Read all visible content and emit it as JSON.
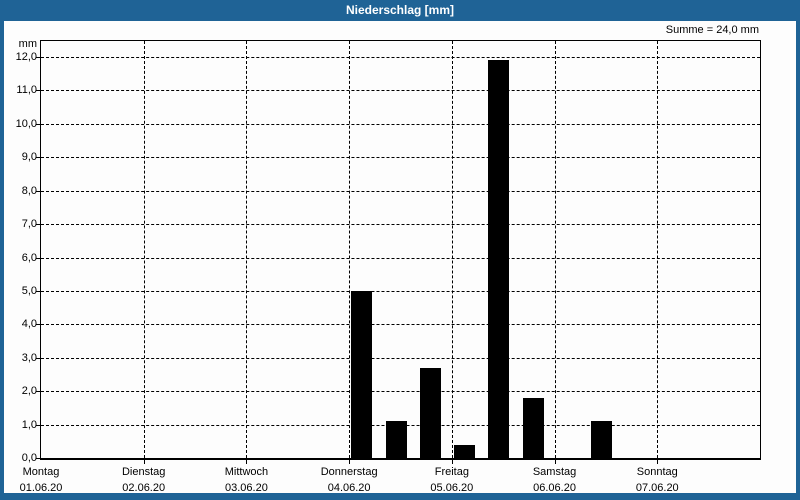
{
  "window": {
    "title": "Niederschlag [mm]",
    "titlebar_color": "#1f6396",
    "border_color": "#1f6396"
  },
  "chart_data": {
    "type": "bar",
    "title": "Niederschlag [mm]",
    "ylabel": "mm",
    "sum_annotation": "Summe = 24,0 mm",
    "sum_value_mm": "24,0",
    "ylim": [
      0,
      12
    ],
    "y_tick_step": 1.0,
    "y_tick_labels": [
      "0,0",
      "1,0",
      "2,0",
      "3,0",
      "4,0",
      "5,0",
      "6,0",
      "7,0",
      "8,0",
      "9,0",
      "10,0",
      "11,0",
      "12,0"
    ],
    "grid": "dashed",
    "legend": "none",
    "bar_color": "#000000",
    "x_axis_days": [
      {
        "name": "Montag",
        "date": "01.06.20"
      },
      {
        "name": "Dienstag",
        "date": "02.06.20"
      },
      {
        "name": "Mittwoch",
        "date": "03.06.20"
      },
      {
        "name": "Donnerstag",
        "date": "04.06.20"
      },
      {
        "name": "Freitag",
        "date": "05.06.20"
      },
      {
        "name": "Samstag",
        "date": "06.06.20"
      },
      {
        "name": "Sonntag",
        "date": "07.06.20"
      }
    ],
    "bars": [
      {
        "day": "Donnerstag 04.06.20",
        "time_center_days_from_monday": 3.125,
        "value_mm": 5.0
      },
      {
        "day": "Donnerstag 04.06.20",
        "time_center_days_from_monday": 3.4583,
        "value_mm": 1.1
      },
      {
        "day": "Donnerstag 04.06.20",
        "time_center_days_from_monday": 3.7917,
        "value_mm": 2.7
      },
      {
        "day": "Freitag 05.06.20",
        "time_center_days_from_monday": 4.125,
        "value_mm": 0.4
      },
      {
        "day": "Freitag 05.06.20",
        "time_center_days_from_monday": 4.4583,
        "value_mm": 11.9
      },
      {
        "day": "Freitag 05.06.20",
        "time_center_days_from_monday": 4.7917,
        "value_mm": 1.8
      },
      {
        "day": "Samstag 06.06.20",
        "time_center_days_from_monday": 5.4583,
        "value_mm": 1.1
      }
    ]
  }
}
